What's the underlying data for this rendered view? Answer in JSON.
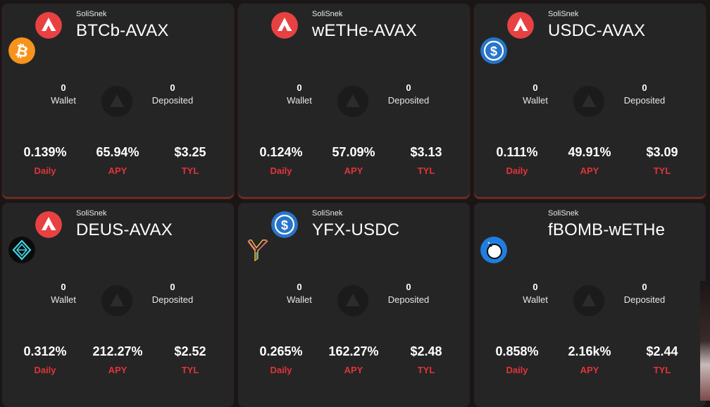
{
  "cards": [
    {
      "provider": "SoliSnek",
      "pair": "BTCb-AVAX",
      "token_a_icon": "avax-icon",
      "token_b_icon": "bitcoin-icon",
      "wallet_value": "0",
      "wallet_label": "Wallet",
      "deposited_value": "0",
      "deposited_label": "Deposited",
      "daily": "0.139%",
      "daily_label": "Daily",
      "apy": "65.94%",
      "apy_label": "APY",
      "tvl": "$3.25",
      "tvl_label": "TYL"
    },
    {
      "provider": "SoliSnek",
      "pair": "wETHe-AVAX",
      "token_a_icon": "avax-icon",
      "token_b_icon": "",
      "wallet_value": "0",
      "wallet_label": "Wallet",
      "deposited_value": "0",
      "deposited_label": "Deposited",
      "daily": "0.124%",
      "daily_label": "Daily",
      "apy": "57.09%",
      "apy_label": "APY",
      "tvl": "$3.13",
      "tvl_label": "TYL"
    },
    {
      "provider": "SoliSnek",
      "pair": "USDC-AVAX",
      "token_a_icon": "avax-icon",
      "token_b_icon": "usdc-icon",
      "wallet_value": "0",
      "wallet_label": "Wallet",
      "deposited_value": "0",
      "deposited_label": "Deposited",
      "daily": "0.111%",
      "daily_label": "Daily",
      "apy": "49.91%",
      "apy_label": "APY",
      "tvl": "$3.09",
      "tvl_label": "TYL"
    },
    {
      "provider": "SoliSnek",
      "pair": "DEUS-AVAX",
      "token_a_icon": "avax-icon",
      "token_b_icon": "deus-icon",
      "wallet_value": "0",
      "wallet_label": "Wallet",
      "deposited_value": "0",
      "deposited_label": "Deposited",
      "daily": "0.312%",
      "daily_label": "Daily",
      "apy": "212.27%",
      "apy_label": "APY",
      "tvl": "$2.52",
      "tvl_label": "TYL"
    },
    {
      "provider": "SoliSnek",
      "pair": "YFX-USDC",
      "token_a_icon": "usdc-icon",
      "token_b_icon": "yfx-icon",
      "wallet_value": "0",
      "wallet_label": "Wallet",
      "deposited_value": "0",
      "deposited_label": "Deposited",
      "daily": "0.265%",
      "daily_label": "Daily",
      "apy": "162.27%",
      "apy_label": "APY",
      "tvl": "$2.48",
      "tvl_label": "TYL"
    },
    {
      "provider": "SoliSnek",
      "pair": "fBOMB-wETHe",
      "token_a_icon": "",
      "token_b_icon": "fbomb-icon",
      "wallet_value": "0",
      "wallet_label": "Wallet",
      "deposited_value": "0",
      "deposited_label": "Deposited",
      "daily": "0.858%",
      "daily_label": "Daily",
      "apy": "2.16k%",
      "apy_label": "APY",
      "tvl": "$2.44",
      "tvl_label": "TYL"
    }
  ],
  "colors": {
    "card_bg": "#262525",
    "accent_red": "#e0343a",
    "avax_red": "#e84142",
    "btc_orange": "#f7931a",
    "usdc_blue": "#2775ca"
  }
}
